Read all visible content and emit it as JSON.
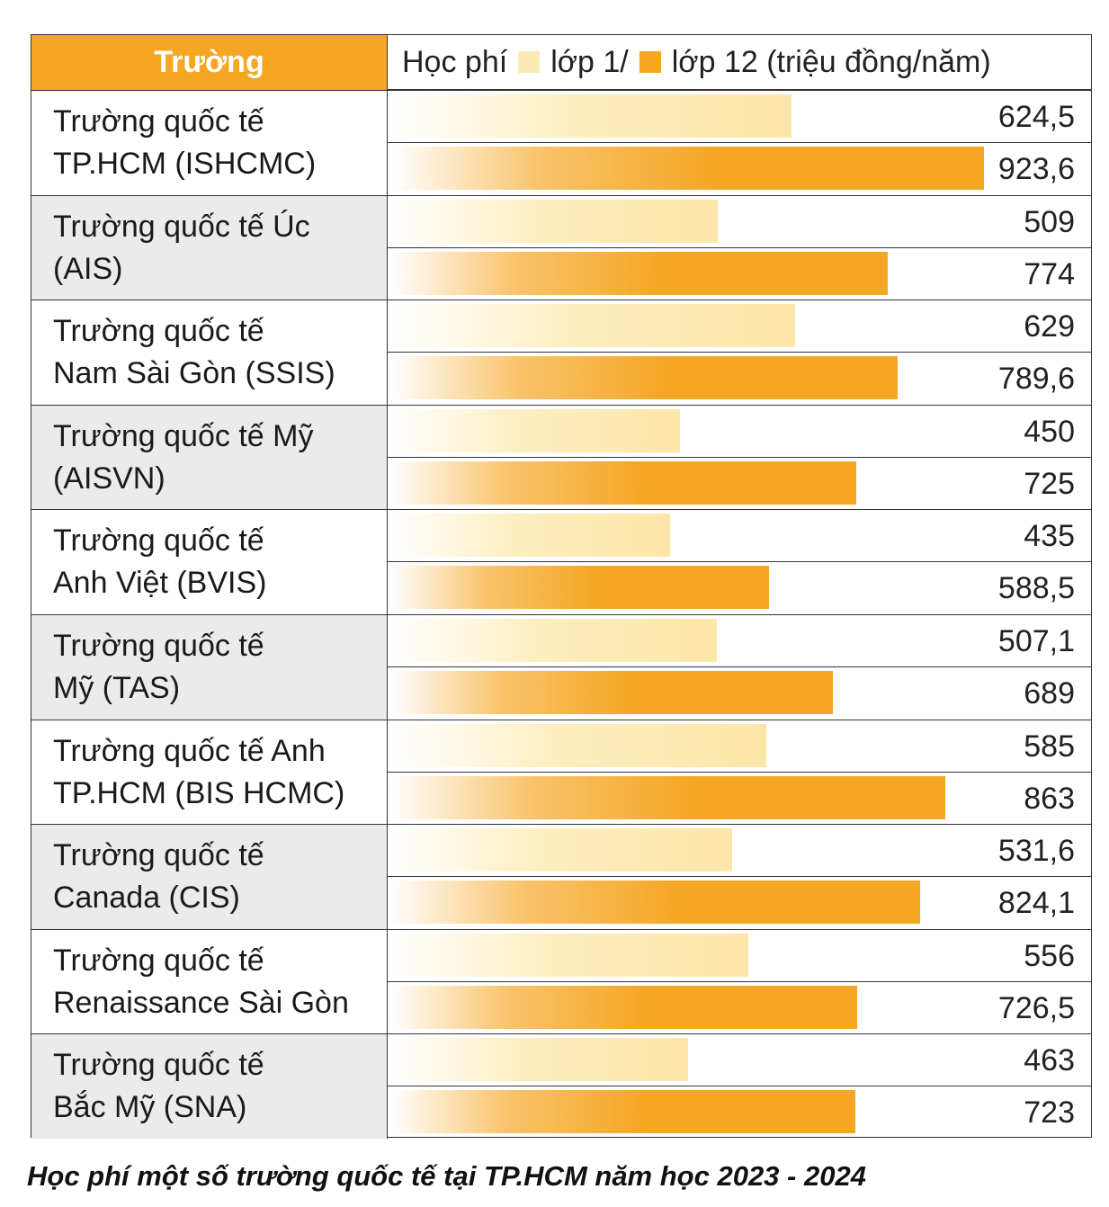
{
  "header": {
    "school_col": "Trường",
    "fee_label": "Học phí",
    "legend_1": "lớp 1/",
    "legend_12": "lớp 12 (triệu đồng/năm)"
  },
  "caption": "Học phí một số trường quốc tế tại TP.HCM năm học 2023 - 2024",
  "colors": {
    "grade1": "#fde6a8",
    "grade12": "#f5a623",
    "accent": "#f5a623"
  },
  "chart_data": {
    "type": "bar",
    "orientation": "horizontal",
    "unit": "triệu đồng/năm",
    "xlim": [
      0,
      1000
    ],
    "categories": [
      "Trường quốc tế\nTP.HCM (ISHCMC)",
      "Trường quốc tế Úc\n(AIS)",
      "Trường quốc tế\nNam Sài Gòn (SSIS)",
      "Trường quốc tế Mỹ\n(AISVN)",
      "Trường quốc tế\nAnh Việt (BVIS)",
      "Trường quốc tế\nMỹ (TAS)",
      "Trường quốc tế Anh\nTP.HCM (BIS HCMC)",
      "Trường quốc tế\nCanada (CIS)",
      "Trường quốc tế\nRenaissance Sài Gòn",
      "Trường quốc tế\nBắc Mỹ (SNA)"
    ],
    "series": [
      {
        "name": "lớp 1",
        "values": [
          624.5,
          509,
          629,
          450,
          435,
          507.1,
          585,
          531.6,
          556,
          463
        ],
        "labels": [
          "624,5",
          "509",
          "629",
          "450",
          "435",
          "507,1",
          "585",
          "531,6",
          "556",
          "463"
        ]
      },
      {
        "name": "lớp 12",
        "values": [
          923.6,
          774,
          789.6,
          725,
          588.5,
          689,
          863,
          824.1,
          726.5,
          723
        ],
        "labels": [
          "923,6",
          "774",
          "789,6",
          "725",
          "588,5",
          "689",
          "863",
          "824,1",
          "726,5",
          "723"
        ]
      }
    ]
  }
}
